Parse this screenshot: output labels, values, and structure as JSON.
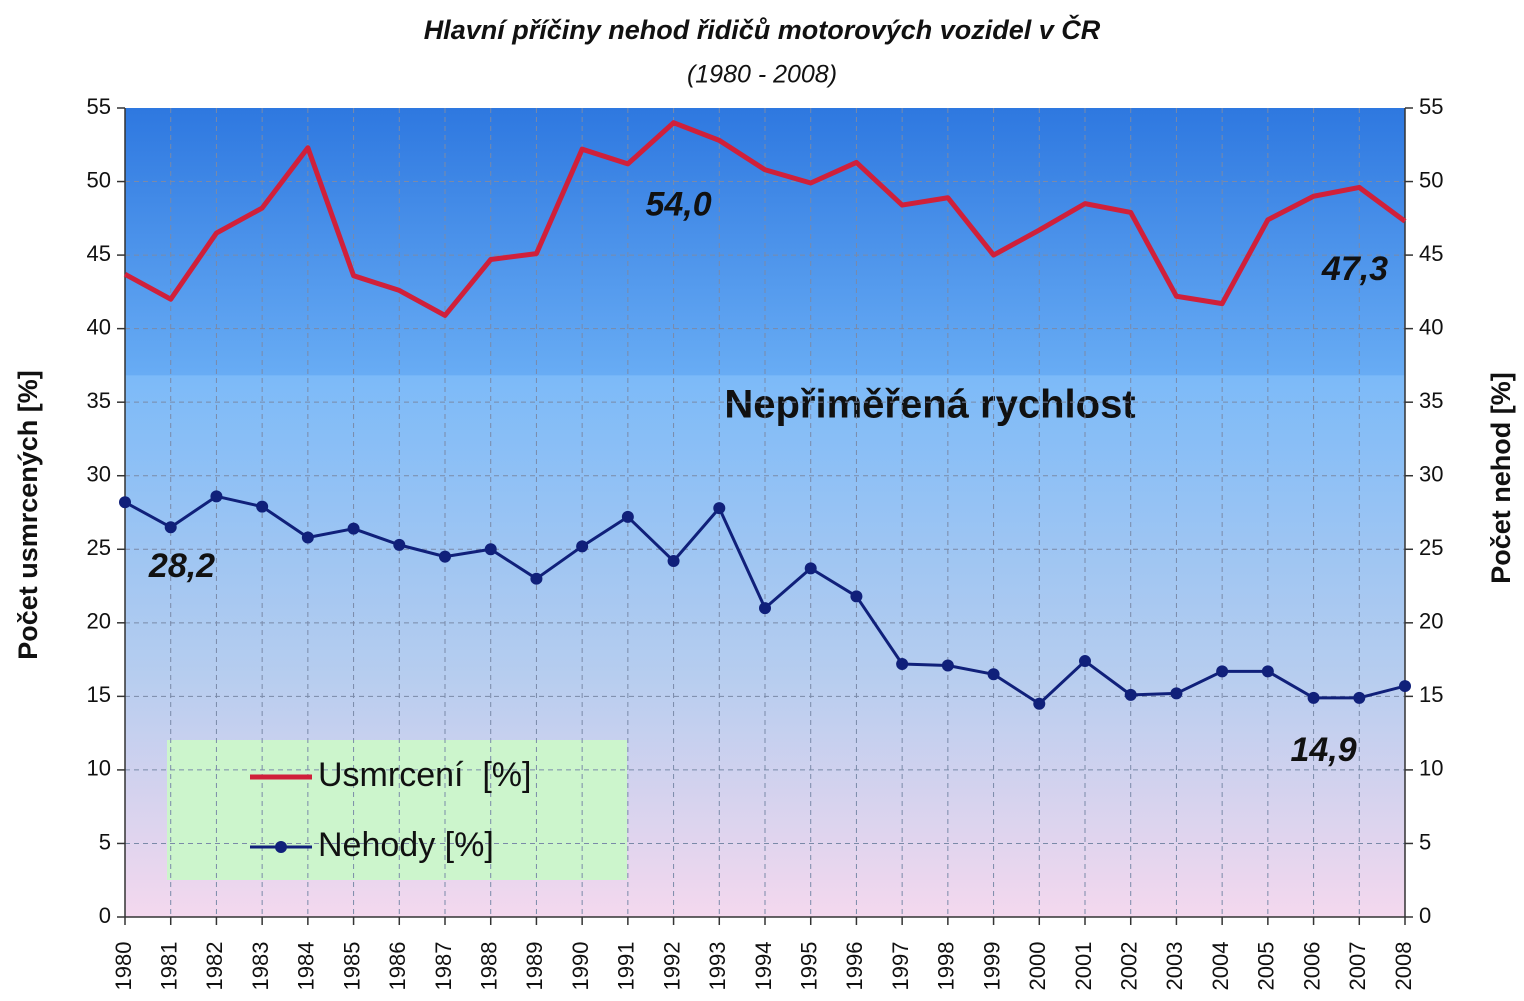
{
  "chart_data": {
    "type": "line",
    "title": "Hlavní příčiny nehod řidičů motorových vozidel v ČR",
    "subtitle": "(1980 - 2008)",
    "annotation": "Nepřiměřená rychlost",
    "ylabel": "Počet usmrcených  [%]",
    "y2label": "Počet nehod  [%]",
    "categories": [
      "1980",
      "1981",
      "1982",
      "1983",
      "1984",
      "1985",
      "1986",
      "1987",
      "1988",
      "1989",
      "1990",
      "1991",
      "1992",
      "1993",
      "1994",
      "1995",
      "1996",
      "1997",
      "1998",
      "1999",
      "2000",
      "2001",
      "2002",
      "2003",
      "2004",
      "2005",
      "2006",
      "2007",
      "2008"
    ],
    "series": [
      {
        "name": "Usmrcení  [%]",
        "color": "#d0203a",
        "marker": false,
        "values": [
          43.7,
          42.0,
          46.5,
          48.2,
          52.3,
          43.6,
          42.6,
          40.9,
          44.7,
          45.1,
          52.2,
          51.2,
          54.0,
          52.8,
          50.8,
          49.9,
          51.3,
          48.4,
          48.9,
          45.0,
          46.7,
          48.5,
          47.9,
          42.2,
          41.7,
          47.4,
          49.0,
          49.6,
          47.3
        ],
        "value_labels": [
          null,
          null,
          null,
          null,
          null,
          null,
          null,
          null,
          null,
          null,
          null,
          null,
          "54,0",
          null,
          null,
          null,
          null,
          null,
          null,
          null,
          null,
          null,
          null,
          null,
          null,
          null,
          null,
          null,
          "47,3"
        ]
      },
      {
        "name": "Nehody [%]",
        "color": "#10207a",
        "marker": true,
        "values": [
          28.2,
          26.5,
          28.6,
          27.9,
          25.8,
          26.4,
          25.3,
          24.5,
          25.0,
          23.0,
          25.2,
          27.2,
          24.2,
          27.8,
          21.0,
          23.7,
          21.8,
          17.2,
          17.1,
          16.5,
          14.5,
          17.4,
          15.1,
          15.2,
          16.7,
          16.7,
          14.9,
          14.9,
          15.7
        ],
        "value_labels": [
          "28,2",
          null,
          null,
          null,
          null,
          null,
          null,
          null,
          null,
          null,
          null,
          null,
          null,
          null,
          null,
          null,
          null,
          null,
          null,
          null,
          null,
          null,
          null,
          null,
          null,
          null,
          "14,9",
          null,
          null
        ]
      }
    ],
    "ylim": [
      0,
      55
    ],
    "yticks": [
      0,
      5,
      10,
      15,
      20,
      25,
      30,
      35,
      40,
      45,
      50,
      55
    ],
    "y2lim": [
      0,
      55
    ],
    "y2ticks": [
      0,
      5,
      10,
      15,
      20,
      25,
      30,
      35,
      40,
      45,
      50,
      55
    ],
    "grid": true,
    "legend": "lower left"
  }
}
